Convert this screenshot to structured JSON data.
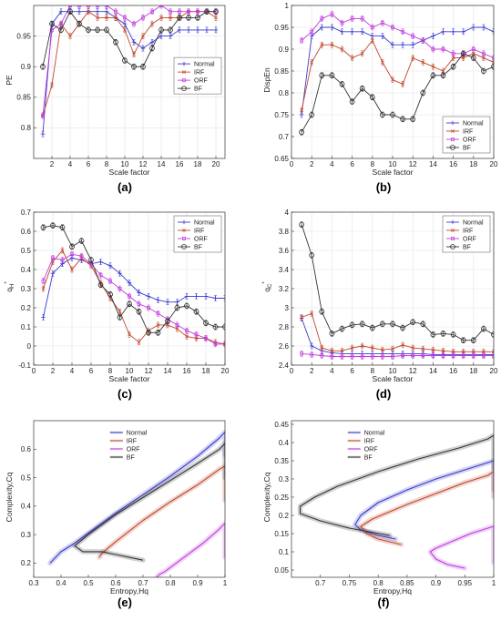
{
  "colors": {
    "Normal": "#3b3bcf",
    "IRF": "#c0462a",
    "ORF": "#c03ce0",
    "BF": "#333333"
  },
  "chart_data": [
    {
      "id": "a",
      "type": "line",
      "subcaption": "(a)",
      "xlabel": "Scale factor",
      "ylabel": "PE",
      "xlim": [
        0,
        21
      ],
      "ylim": [
        0.75,
        1.0
      ],
      "grid": true,
      "legend": "center-right",
      "error_bars": true,
      "xticks": [
        2,
        4,
        6,
        8,
        10,
        12,
        14,
        16,
        18,
        20
      ],
      "yticks": [
        0.8,
        0.85,
        0.9,
        0.95
      ],
      "x": [
        1,
        2,
        3,
        4,
        5,
        6,
        7,
        8,
        9,
        10,
        11,
        12,
        13,
        14,
        15,
        16,
        17,
        18,
        19,
        20
      ],
      "series": [
        {
          "name": "Normal",
          "values": [
            0.79,
            0.97,
            0.99,
            0.99,
            0.99,
            0.99,
            0.99,
            0.99,
            0.98,
            0.97,
            0.94,
            0.93,
            0.94,
            0.95,
            0.95,
            0.96,
            0.96,
            0.96,
            0.96,
            0.96
          ]
        },
        {
          "name": "IRF",
          "values": [
            0.82,
            0.87,
            0.97,
            0.95,
            0.97,
            0.99,
            0.98,
            0.98,
            0.98,
            0.96,
            0.92,
            0.95,
            0.97,
            0.98,
            0.98,
            0.98,
            0.99,
            0.99,
            0.99,
            0.98
          ]
        },
        {
          "name": "ORF",
          "values": [
            0.82,
            0.96,
            0.97,
            1.0,
            1.0,
            1.0,
            1.0,
            1.0,
            0.99,
            0.98,
            0.97,
            0.98,
            0.99,
            1.0,
            0.99,
            0.99,
            0.99,
            0.99,
            0.99,
            0.99
          ]
        },
        {
          "name": "BF",
          "values": [
            0.9,
            0.97,
            0.96,
            0.99,
            0.97,
            0.96,
            0.96,
            0.96,
            0.94,
            0.91,
            0.9,
            0.9,
            0.93,
            0.96,
            0.96,
            0.98,
            0.98,
            0.98,
            0.99,
            0.99
          ]
        }
      ]
    },
    {
      "id": "b",
      "type": "line",
      "subcaption": "(b)",
      "xlabel": "Scale factor",
      "ylabel": "DispEn",
      "xlim": [
        0,
        20
      ],
      "ylim": [
        0.65,
        1.0
      ],
      "grid": true,
      "legend": "bottom-right",
      "error_bars": true,
      "xticks": [
        0,
        2,
        4,
        6,
        8,
        10,
        12,
        14,
        16,
        18,
        20
      ],
      "yticks": [
        0.65,
        0.7,
        0.75,
        0.8,
        0.85,
        0.9,
        0.95,
        1
      ],
      "x": [
        1,
        2,
        3,
        4,
        5,
        6,
        7,
        8,
        9,
        10,
        11,
        12,
        13,
        14,
        15,
        16,
        17,
        18,
        19,
        20
      ],
      "series": [
        {
          "name": "Normal",
          "values": [
            0.75,
            0.93,
            0.95,
            0.95,
            0.94,
            0.94,
            0.94,
            0.93,
            0.93,
            0.91,
            0.91,
            0.91,
            0.92,
            0.93,
            0.94,
            0.94,
            0.94,
            0.95,
            0.95,
            0.94
          ]
        },
        {
          "name": "IRF",
          "values": [
            0.76,
            0.87,
            0.91,
            0.91,
            0.9,
            0.88,
            0.89,
            0.92,
            0.87,
            0.83,
            0.82,
            0.88,
            0.87,
            0.86,
            0.85,
            0.88,
            0.88,
            0.89,
            0.88,
            0.87
          ]
        },
        {
          "name": "ORF",
          "values": [
            0.92,
            0.94,
            0.97,
            0.98,
            0.96,
            0.97,
            0.97,
            0.95,
            0.96,
            0.95,
            0.94,
            0.93,
            0.92,
            0.9,
            0.9,
            0.89,
            0.89,
            0.9,
            0.89,
            0.88
          ]
        },
        {
          "name": "BF",
          "values": [
            0.71,
            0.75,
            0.84,
            0.84,
            0.82,
            0.78,
            0.81,
            0.79,
            0.75,
            0.75,
            0.74,
            0.74,
            0.8,
            0.84,
            0.84,
            0.86,
            0.89,
            0.88,
            0.85,
            0.86
          ]
        }
      ]
    },
    {
      "id": "c",
      "type": "line",
      "subcaption": "(c)",
      "xlabel": "Scale factor",
      "ylabel": "q",
      "ylabel_sub": "H",
      "ylabel_sup": "*",
      "xlim": [
        0,
        20
      ],
      "ylim": [
        -0.1,
        0.7
      ],
      "grid": true,
      "legend": "top-right",
      "error_bars": true,
      "xticks": [
        0,
        2,
        4,
        6,
        8,
        10,
        12,
        14,
        16,
        18,
        20
      ],
      "yticks": [
        -0.1,
        0,
        0.1,
        0.2,
        0.3,
        0.4,
        0.5,
        0.6,
        0.7
      ],
      "x": [
        1,
        2,
        3,
        4,
        5,
        6,
        7,
        8,
        9,
        10,
        11,
        12,
        13,
        14,
        15,
        16,
        17,
        18,
        19,
        20
      ],
      "series": [
        {
          "name": "Normal",
          "values": [
            0.15,
            0.38,
            0.43,
            0.46,
            0.45,
            0.43,
            0.44,
            0.42,
            0.38,
            0.33,
            0.28,
            0.26,
            0.24,
            0.23,
            0.23,
            0.26,
            0.26,
            0.26,
            0.25,
            0.25
          ]
        },
        {
          "name": "IRF",
          "values": [
            0.3,
            0.44,
            0.5,
            0.4,
            0.46,
            0.42,
            0.33,
            0.25,
            0.18,
            0.06,
            0.02,
            0.08,
            0.11,
            0.11,
            0.09,
            0.05,
            0.04,
            0.04,
            0.02,
            0.01
          ]
        },
        {
          "name": "ORF",
          "values": [
            0.34,
            0.46,
            0.45,
            0.48,
            0.47,
            0.43,
            0.37,
            0.34,
            0.3,
            0.26,
            0.22,
            0.2,
            0.17,
            0.14,
            0.11,
            0.08,
            0.06,
            0.04,
            0.01,
            0.01
          ]
        },
        {
          "name": "BF",
          "values": [
            0.62,
            0.63,
            0.62,
            0.52,
            0.55,
            0.45,
            0.32,
            0.27,
            0.15,
            0.22,
            0.18,
            0.07,
            0.07,
            0.13,
            0.2,
            0.21,
            0.18,
            0.12,
            0.1,
            0.1
          ]
        }
      ]
    },
    {
      "id": "d",
      "type": "line",
      "subcaption": "(d)",
      "xlabel": "Scale factor",
      "ylabel": "q",
      "ylabel_sub": "C",
      "ylabel_sup": "*",
      "xlim": [
        0,
        20
      ],
      "ylim": [
        2.4,
        4.0
      ],
      "grid": true,
      "legend": "top-right",
      "error_bars": true,
      "xticks": [
        0,
        2,
        4,
        6,
        8,
        10,
        12,
        14,
        16,
        18,
        20
      ],
      "yticks": [
        2.4,
        2.6,
        2.8,
        3,
        3.2,
        3.4,
        3.6,
        3.8,
        4
      ],
      "x": [
        1,
        2,
        3,
        4,
        5,
        6,
        7,
        8,
        9,
        10,
        11,
        12,
        13,
        14,
        15,
        16,
        17,
        18,
        19,
        20
      ],
      "series": [
        {
          "name": "Normal",
          "values": [
            2.89,
            2.6,
            2.55,
            2.53,
            2.52,
            2.52,
            2.52,
            2.52,
            2.52,
            2.52,
            2.52,
            2.52,
            2.52,
            2.51,
            2.51,
            2.51,
            2.51,
            2.51,
            2.51,
            2.51
          ]
        },
        {
          "name": "IRF",
          "values": [
            2.9,
            2.94,
            2.58,
            2.55,
            2.55,
            2.58,
            2.6,
            2.58,
            2.56,
            2.57,
            2.61,
            2.58,
            2.57,
            2.56,
            2.55,
            2.54,
            2.54,
            2.54,
            2.54,
            2.54
          ]
        },
        {
          "name": "ORF",
          "values": [
            2.52,
            2.51,
            2.5,
            2.49,
            2.49,
            2.49,
            2.49,
            2.49,
            2.49,
            2.49,
            2.5,
            2.5,
            2.5,
            2.5,
            2.5,
            2.5,
            2.5,
            2.5,
            2.5,
            2.5
          ]
        },
        {
          "name": "BF",
          "values": [
            3.87,
            3.55,
            2.96,
            2.73,
            2.78,
            2.82,
            2.83,
            2.79,
            2.83,
            2.83,
            2.79,
            2.85,
            2.83,
            2.72,
            2.73,
            2.72,
            2.66,
            2.66,
            2.78,
            2.72
          ]
        }
      ]
    },
    {
      "id": "e",
      "type": "line",
      "subcaption": "(e)",
      "xlabel": "Entropy,Hq",
      "ylabel": "Complexity,Cq",
      "xlim": [
        0.3,
        1.0
      ],
      "ylim": [
        0.15,
        0.7
      ],
      "grid": false,
      "legend": "top-center",
      "shaded_band": true,
      "xticks": [
        0.3,
        0.4,
        0.5,
        0.6,
        0.7,
        0.8,
        0.9,
        1
      ],
      "yticks": [
        0.2,
        0.3,
        0.4,
        0.5,
        0.6
      ],
      "series": [
        {
          "name": "Normal",
          "points": [
            [
              0.36,
              0.2
            ],
            [
              0.4,
              0.24
            ],
            [
              0.45,
              0.27
            ],
            [
              0.5,
              0.305
            ],
            [
              0.6,
              0.375
            ],
            [
              0.7,
              0.44
            ],
            [
              0.8,
              0.505
            ],
            [
              0.9,
              0.575
            ],
            [
              0.98,
              0.64
            ],
            [
              1.0,
              0.66
            ],
            [
              1.0,
              0.58
            ]
          ]
        },
        {
          "name": "IRF",
          "points": [
            [
              0.54,
              0.22
            ],
            [
              0.55,
              0.235
            ],
            [
              0.6,
              0.275
            ],
            [
              0.7,
              0.35
            ],
            [
              0.8,
              0.415
            ],
            [
              0.9,
              0.475
            ],
            [
              0.98,
              0.53
            ],
            [
              1.0,
              0.54
            ],
            [
              1.0,
              0.42
            ]
          ]
        },
        {
          "name": "ORF",
          "points": [
            [
              0.75,
              0.15
            ],
            [
              0.76,
              0.16
            ],
            [
              0.78,
              0.17
            ],
            [
              0.85,
              0.22
            ],
            [
              0.92,
              0.27
            ],
            [
              0.98,
              0.32
            ],
            [
              1.0,
              0.34
            ],
            [
              1.0,
              0.22
            ]
          ]
        },
        {
          "name": "BF",
          "points": [
            [
              0.7,
              0.21
            ],
            [
              0.65,
              0.22
            ],
            [
              0.6,
              0.23
            ],
            [
              0.55,
              0.24
            ],
            [
              0.48,
              0.24
            ],
            [
              0.45,
              0.26
            ],
            [
              0.5,
              0.3
            ],
            [
              0.6,
              0.37
            ],
            [
              0.7,
              0.43
            ],
            [
              0.8,
              0.49
            ],
            [
              0.9,
              0.55
            ],
            [
              0.98,
              0.6
            ],
            [
              1.0,
              0.62
            ],
            [
              1.0,
              0.5
            ]
          ]
        }
      ]
    },
    {
      "id": "f",
      "type": "line",
      "subcaption": "(f)",
      "xlabel": "Entropy,Hq",
      "ylabel": "Complexity,Cq",
      "xlim": [
        0.65,
        1.0
      ],
      "ylim": [
        0.03,
        0.46
      ],
      "grid": false,
      "legend": "top-left",
      "shaded_band": true,
      "xticks": [
        0.7,
        0.75,
        0.8,
        0.85,
        0.9,
        0.95,
        1
      ],
      "yticks": [
        0.05,
        0.1,
        0.15,
        0.2,
        0.25,
        0.3,
        0.35,
        0.4,
        0.45
      ],
      "series": [
        {
          "name": "Normal",
          "points": [
            [
              0.83,
              0.135
            ],
            [
              0.8,
              0.145
            ],
            [
              0.77,
              0.16
            ],
            [
              0.76,
              0.175
            ],
            [
              0.77,
              0.2
            ],
            [
              0.8,
              0.235
            ],
            [
              0.85,
              0.27
            ],
            [
              0.9,
              0.3
            ],
            [
              0.95,
              0.325
            ],
            [
              0.99,
              0.345
            ],
            [
              1.0,
              0.35
            ],
            [
              1.0,
              0.27
            ]
          ]
        },
        {
          "name": "IRF",
          "points": [
            [
              0.84,
              0.12
            ],
            [
              0.8,
              0.135
            ],
            [
              0.78,
              0.15
            ],
            [
              0.77,
              0.17
            ],
            [
              0.79,
              0.19
            ],
            [
              0.85,
              0.23
            ],
            [
              0.9,
              0.26
            ],
            [
              0.95,
              0.29
            ],
            [
              0.99,
              0.31
            ],
            [
              1.0,
              0.32
            ],
            [
              1.0,
              0.25
            ]
          ]
        },
        {
          "name": "ORF",
          "points": [
            [
              0.95,
              0.055
            ],
            [
              0.92,
              0.065
            ],
            [
              0.9,
              0.08
            ],
            [
              0.89,
              0.1
            ],
            [
              0.9,
              0.11
            ],
            [
              0.93,
              0.13
            ],
            [
              0.96,
              0.15
            ],
            [
              0.99,
              0.165
            ],
            [
              1.0,
              0.17
            ],
            [
              1.0,
              0.07
            ]
          ]
        },
        {
          "name": "BF",
          "points": [
            [
              0.82,
              0.145
            ],
            [
              0.75,
              0.165
            ],
            [
              0.7,
              0.185
            ],
            [
              0.665,
              0.205
            ],
            [
              0.665,
              0.225
            ],
            [
              0.69,
              0.25
            ],
            [
              0.73,
              0.28
            ],
            [
              0.8,
              0.32
            ],
            [
              0.87,
              0.355
            ],
            [
              0.94,
              0.385
            ],
            [
              0.99,
              0.41
            ],
            [
              1.0,
              0.42
            ],
            [
              1.0,
              0.33
            ]
          ]
        }
      ]
    }
  ]
}
